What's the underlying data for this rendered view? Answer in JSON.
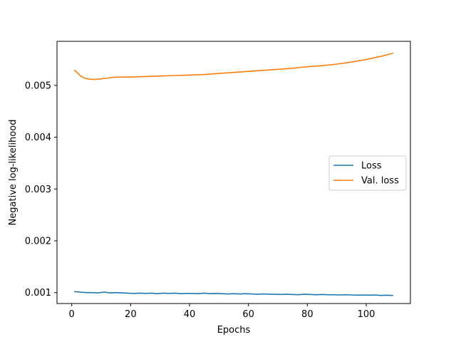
{
  "chart_data": {
    "type": "line",
    "title": "",
    "xlabel": "Epochs",
    "ylabel": "Negative log-likelihood",
    "xlim": [
      -5,
      115
    ],
    "ylim": [
      0.00079,
      0.00585
    ],
    "x_ticks": [
      0,
      20,
      40,
      60,
      80,
      100
    ],
    "x_tick_labels": [
      "0",
      "20",
      "40",
      "60",
      "80",
      "100"
    ],
    "y_ticks": [
      0.001,
      0.002,
      0.003,
      0.004,
      0.005
    ],
    "y_tick_labels": [
      "0.001",
      "0.002",
      "0.003",
      "0.004",
      "0.005"
    ],
    "grid": false,
    "legend_position": "center-right",
    "series": [
      {
        "name": "Loss",
        "color": "#1f77b4",
        "x": [
          1,
          3,
          5,
          7,
          9,
          11,
          13,
          15,
          17,
          19,
          21,
          23,
          25,
          27,
          29,
          31,
          33,
          35,
          37,
          39,
          41,
          43,
          45,
          47,
          49,
          51,
          53,
          55,
          57,
          59,
          61,
          63,
          65,
          67,
          69,
          71,
          73,
          75,
          77,
          79,
          81,
          83,
          85,
          87,
          89,
          91,
          93,
          95,
          97,
          99,
          101,
          103,
          105,
          107,
          109
        ],
        "y": [
          0.00102,
          0.00101,
          0.001,
          0.001,
          0.000995,
          0.00101,
          0.000995,
          0.001,
          0.000995,
          0.00099,
          0.000985,
          0.00099,
          0.000985,
          0.00099,
          0.00098,
          0.00099,
          0.000985,
          0.00099,
          0.00098,
          0.000985,
          0.000985,
          0.00098,
          0.00099,
          0.00098,
          0.000985,
          0.00098,
          0.000975,
          0.00098,
          0.000975,
          0.00098,
          0.000975,
          0.00097,
          0.000975,
          0.00097,
          0.00097,
          0.000965,
          0.00097,
          0.000965,
          0.00096,
          0.00097,
          0.000965,
          0.00096,
          0.000965,
          0.00096,
          0.00096,
          0.000955,
          0.00096,
          0.000955,
          0.00095,
          0.000955,
          0.00095,
          0.000955,
          0.000945,
          0.00095,
          0.000945
        ]
      },
      {
        "name": "Val. loss",
        "color": "#ff7f0e",
        "x": [
          1,
          2,
          3,
          4,
          5,
          6,
          7,
          8,
          9,
          10,
          12,
          14,
          16,
          18,
          20,
          25,
          30,
          35,
          40,
          45,
          50,
          55,
          60,
          65,
          70,
          75,
          80,
          85,
          90,
          95,
          100,
          105,
          109
        ],
        "y": [
          0.00529,
          0.00524,
          0.00518,
          0.00515,
          0.00513,
          0.00512,
          0.005115,
          0.005115,
          0.00512,
          0.005125,
          0.00514,
          0.005155,
          0.00516,
          0.00516,
          0.00516,
          0.00517,
          0.00518,
          0.00519,
          0.0052,
          0.00521,
          0.00523,
          0.00525,
          0.00527,
          0.00529,
          0.00531,
          0.00533,
          0.00536,
          0.00538,
          0.00541,
          0.00545,
          0.0055,
          0.00556,
          0.00562
        ]
      }
    ]
  }
}
